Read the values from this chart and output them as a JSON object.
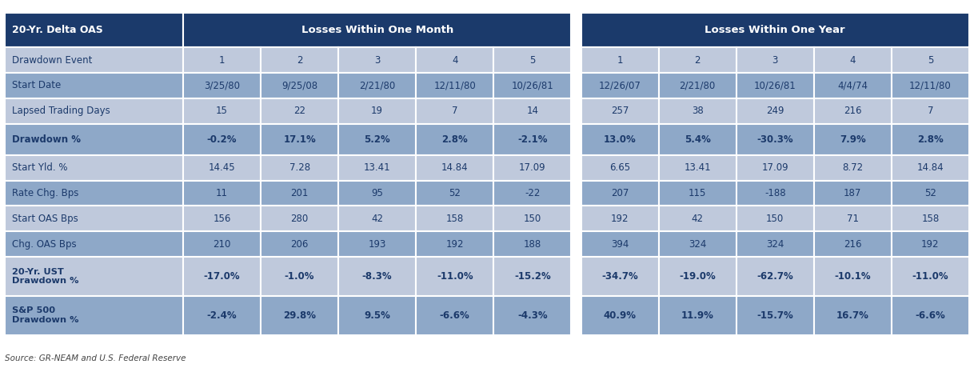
{
  "title_row": [
    "20-Yr. Delta OAS",
    "Losses Within One Month",
    "Losses Within One Year"
  ],
  "header_row": [
    "Drawdown Event",
    "1",
    "2",
    "3",
    "4",
    "5",
    "1",
    "2",
    "3",
    "4",
    "5"
  ],
  "rows": [
    [
      "Start Date",
      "3/25/80",
      "9/25/08",
      "2/21/80",
      "12/11/80",
      "10/26/81",
      "12/26/07",
      "2/21/80",
      "10/26/81",
      "4/4/74",
      "12/11/80"
    ],
    [
      "Lapsed Trading Days",
      "15",
      "22",
      "19",
      "7",
      "14",
      "257",
      "38",
      "249",
      "216",
      "7"
    ],
    [
      "Drawdown %",
      "-0.2%",
      "17.1%",
      "5.2%",
      "2.8%",
      "-2.1%",
      "13.0%",
      "5.4%",
      "-30.3%",
      "7.9%",
      "2.8%"
    ],
    [
      "Start Yld. %",
      "14.45",
      "7.28",
      "13.41",
      "14.84",
      "17.09",
      "6.65",
      "13.41",
      "17.09",
      "8.72",
      "14.84"
    ],
    [
      "Rate Chg. Bps",
      "11",
      "201",
      "95",
      "52",
      "-22",
      "207",
      "115",
      "-188",
      "187",
      "52"
    ],
    [
      "Start OAS Bps",
      "156",
      "280",
      "42",
      "158",
      "150",
      "192",
      "42",
      "150",
      "71",
      "158"
    ],
    [
      "Chg. OAS Bps",
      "210",
      "206",
      "193",
      "192",
      "188",
      "394",
      "324",
      "324",
      "216",
      "192"
    ]
  ],
  "bold_rows": [
    [
      "20-Yr. UST\nDrawdown %",
      "-17.0%",
      "-1.0%",
      "-8.3%",
      "-11.0%",
      "-15.2%",
      "-34.7%",
      "-19.0%",
      "-62.7%",
      "-10.1%",
      "-11.0%"
    ],
    [
      "S&P 500\nDrawdown %",
      "-2.4%",
      "29.8%",
      "9.5%",
      "-6.6%",
      "-4.3%",
      "40.9%",
      "11.9%",
      "-15.7%",
      "16.7%",
      "-6.6%"
    ]
  ],
  "source_text": "Source: GR-NEAM and U.S. Federal Reserve",
  "color_header_dark": "#1B3A6B",
  "color_row_light": "#BFC9DC",
  "color_row_mid": "#8EA8C8",
  "color_white": "#FFFFFF",
  "color_text_dark": "#1C3A6B",
  "color_text_white": "#FFFFFF"
}
